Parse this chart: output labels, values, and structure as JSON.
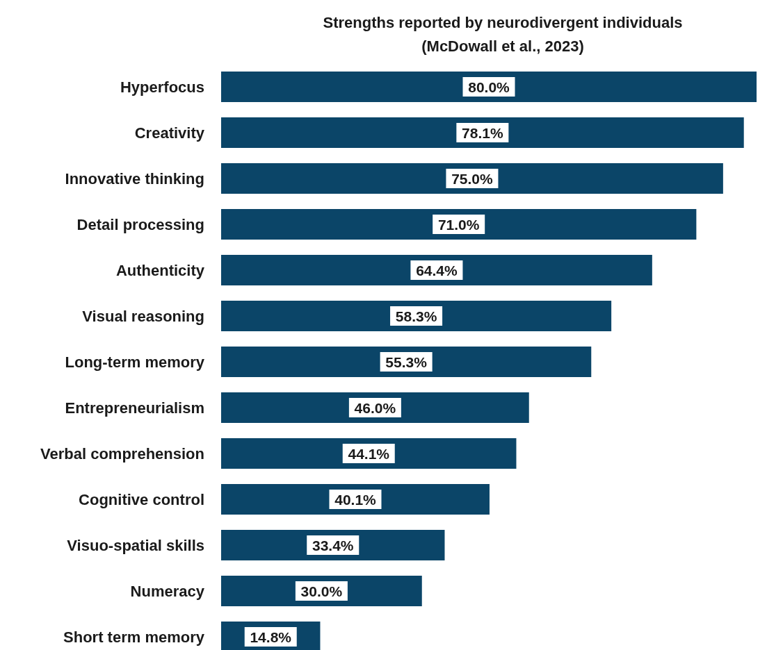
{
  "chart_data": {
    "type": "bar",
    "orientation": "horizontal",
    "title": "Strengths reported by neurodivergent individuals",
    "subtitle": "(McDowall et al., 2023)",
    "categories": [
      "Hyperfocus",
      "Creativity",
      "Innovative thinking",
      "Detail processing",
      "Authenticity",
      "Visual reasoning",
      "Long-term memory",
      "Entrepreneurialism",
      "Verbal comprehension",
      "Cognitive control",
      "Visuo-spatial skills",
      "Numeracy",
      "Short term memory"
    ],
    "values": [
      80.0,
      78.1,
      75.0,
      71.0,
      64.4,
      58.3,
      55.3,
      46.0,
      44.1,
      40.1,
      33.4,
      30.0,
      14.8
    ],
    "value_labels": [
      "80.0%",
      "78.1%",
      "75.0%",
      "71.0%",
      "64.4%",
      "58.3%",
      "55.3%",
      "46.0%",
      "44.1%",
      "40.1%",
      "33.4%",
      "30.0%",
      "14.8%"
    ],
    "color": "#0b4568",
    "tick_labels": "y"
  }
}
